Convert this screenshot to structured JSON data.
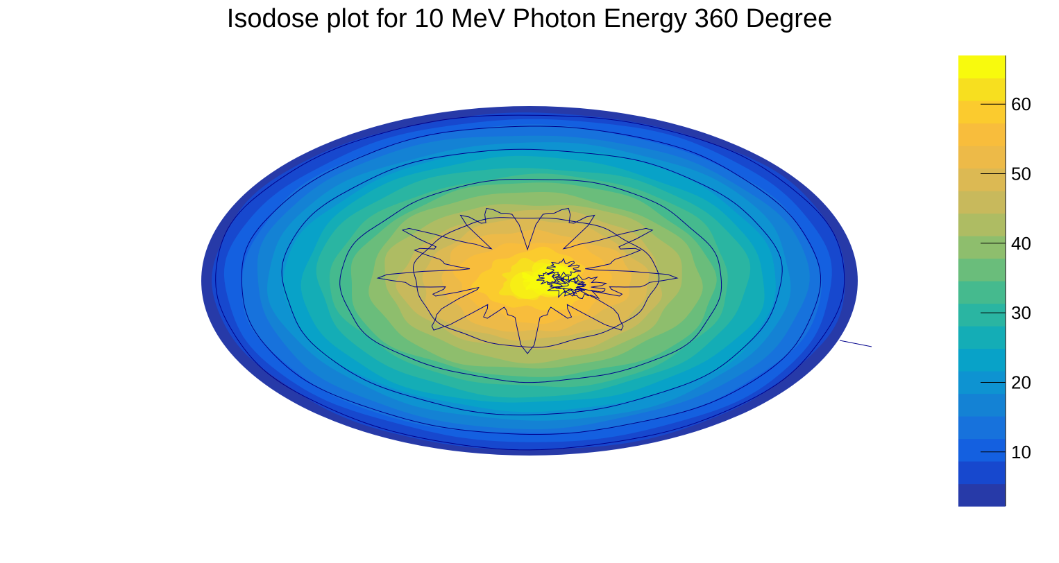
{
  "chart_data": {
    "type": "heatmap",
    "title": "Isodose plot for 10 MeV Photon Energy 360 Degree",
    "subtype": "filled contour on elliptical (polar) domain",
    "colorbar": {
      "range": [
        2.2,
        67
      ],
      "ticks": [
        10,
        20,
        30,
        40,
        50,
        60
      ],
      "tick_labels": [
        "10",
        "20",
        "30",
        "40",
        "50",
        "60"
      ],
      "levels": 20,
      "palette": [
        "#273aa8",
        "#1748ce",
        "#1460e0",
        "#1772dc",
        "#1482d4",
        "#0e93d1",
        "#08a2c8",
        "#14adb6",
        "#2ab5a2",
        "#45ba8e",
        "#6abd7b",
        "#8ebe6d",
        "#aebc63",
        "#c8b95c",
        "#dcb953",
        "#edba48",
        "#f8bd3c",
        "#fbcb2e",
        "#f7df1f",
        "#f8fa0d"
      ]
    },
    "dose_field": {
      "center_dose": 65,
      "edge_dose": 2.5,
      "profile": "dose decreases monotonically from a central maximum (~60-65) to ~3 at the outer rim"
    },
    "contour_lines": [
      {
        "dose": 54,
        "style": "irregular central patches"
      },
      {
        "dose": 46
      },
      {
        "dose": 33
      },
      {
        "dose": 21
      },
      {
        "dose": 12
      },
      {
        "dose": 6
      }
    ],
    "grid": false,
    "legend": "colorbar-right"
  },
  "colors": {
    "contour_line": "#00008b",
    "frame_line": "#000000",
    "background": "#ffffff"
  }
}
